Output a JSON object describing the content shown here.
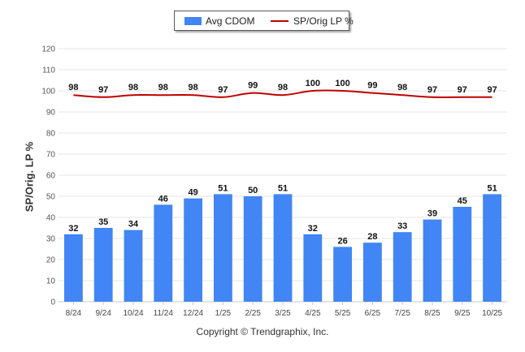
{
  "chart_data": {
    "type": "bar+line",
    "categories": [
      "8/24",
      "9/24",
      "10/24",
      "11/24",
      "12/24",
      "1/25",
      "2/25",
      "3/25",
      "4/25",
      "5/25",
      "6/25",
      "7/25",
      "8/25",
      "9/25",
      "10/25"
    ],
    "series": [
      {
        "name": "Avg CDOM",
        "type": "bar",
        "color": "#4285f4",
        "values": [
          32,
          35,
          34,
          46,
          49,
          51,
          50,
          51,
          32,
          26,
          28,
          33,
          39,
          45,
          51
        ]
      },
      {
        "name": "SP/Orig LP %",
        "type": "line",
        "color": "#c00000",
        "values": [
          98,
          97,
          98,
          98,
          98,
          97,
          99,
          98,
          100,
          100,
          99,
          98,
          97,
          97,
          97
        ]
      }
    ],
    "ylabel": "SP/Orig. LP %",
    "ylim": [
      0,
      120
    ],
    "yticks": [
      0,
      10,
      20,
      30,
      40,
      50,
      60,
      70,
      80,
      90,
      100,
      110,
      120
    ],
    "grid": true,
    "legend": "top-center"
  },
  "footer": {
    "copyright": "Copyright © Trendgraphix, Inc."
  }
}
